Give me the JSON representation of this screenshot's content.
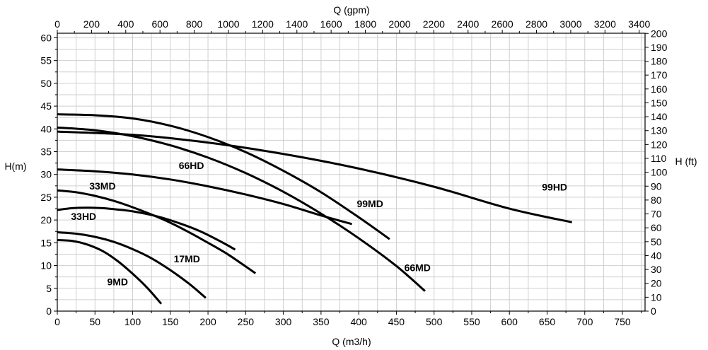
{
  "chart_data": {
    "type": "line",
    "title": "",
    "xlabel": "Q (m3/h)",
    "x2label": "Q (gpm)",
    "ylabel": "H(m)",
    "y2label": "H (ft)",
    "xlim": [
      0,
      780
    ],
    "ylim": [
      0,
      61
    ],
    "x_ticks": [
      0,
      50,
      100,
      150,
      200,
      250,
      300,
      350,
      400,
      450,
      500,
      550,
      600,
      650,
      700,
      750
    ],
    "y_ticks": [
      0,
      5,
      10,
      15,
      20,
      25,
      30,
      35,
      40,
      45,
      50,
      55,
      60
    ],
    "x2_ticks": [
      0,
      200,
      400,
      600,
      800,
      1000,
      1200,
      1400,
      1600,
      1800,
      2000,
      2200,
      2400,
      2600,
      2800,
      3000,
      3200,
      3400
    ],
    "y2_ticks": [
      0,
      10,
      20,
      30,
      40,
      50,
      60,
      70,
      80,
      90,
      100,
      110,
      120,
      130,
      140,
      150,
      160,
      170,
      180,
      190,
      200
    ],
    "grid": true,
    "series": [
      {
        "name": "9MD",
        "label_at": [
          80,
          5.7
        ],
        "x": [
          0,
          20,
          40,
          60,
          80,
          100,
          120,
          138
        ],
        "y": [
          15.6,
          15.4,
          14.6,
          13.2,
          11.0,
          8.2,
          5.0,
          1.6
        ]
      },
      {
        "name": "17MD",
        "label_at": [
          172,
          10.7
        ],
        "x": [
          0,
          25,
          50,
          75,
          100,
          125,
          150,
          175,
          197
        ],
        "y": [
          17.3,
          17.0,
          16.3,
          15.2,
          13.6,
          11.6,
          9.0,
          6.0,
          2.9
        ]
      },
      {
        "name": "33HD",
        "label_at": [
          35,
          20.0
        ],
        "x": [
          0,
          20,
          40,
          60,
          80,
          100,
          130,
          160,
          190,
          220,
          236
        ],
        "y": [
          22.2,
          22.6,
          22.7,
          22.6,
          22.3,
          21.9,
          20.9,
          19.4,
          17.5,
          15.0,
          13.5
        ]
      },
      {
        "name": "33MD",
        "label_at": [
          60,
          26.7
        ],
        "x": [
          0,
          25,
          50,
          75,
          100,
          125,
          150,
          175,
          200,
          225,
          250,
          263
        ],
        "y": [
          26.5,
          26.1,
          25.3,
          24.2,
          22.8,
          21.2,
          19.4,
          17.3,
          15.0,
          12.6,
          9.8,
          8.3
        ]
      },
      {
        "name": "66HD",
        "label_at": [
          178,
          31.2
        ],
        "x": [
          0,
          50,
          100,
          150,
          200,
          250,
          300,
          350,
          391
        ],
        "y": [
          31.1,
          30.7,
          30.0,
          28.9,
          27.4,
          25.6,
          23.5,
          21.0,
          19.1
        ]
      },
      {
        "name": "99HD",
        "label_at": [
          660,
          26.5
        ],
        "x": [
          0,
          100,
          200,
          300,
          400,
          500,
          600,
          683
        ],
        "y": [
          39.4,
          38.7,
          37.0,
          34.5,
          31.3,
          27.3,
          22.5,
          19.5
        ]
      },
      {
        "name": "66MD",
        "label_at": [
          478,
          8.8
        ],
        "x": [
          0,
          50,
          100,
          150,
          200,
          250,
          300,
          350,
          400,
          450,
          488
        ],
        "y": [
          40.3,
          39.7,
          38.4,
          36.4,
          33.7,
          30.3,
          26.2,
          21.4,
          16.0,
          9.9,
          4.4
        ]
      },
      {
        "name": "99MD",
        "label_at": [
          415,
          22.8
        ],
        "x": [
          0,
          50,
          100,
          150,
          200,
          250,
          300,
          350,
          400,
          441
        ],
        "y": [
          43.2,
          43.0,
          42.3,
          40.7,
          38.2,
          34.9,
          30.8,
          26.1,
          20.6,
          15.8
        ]
      }
    ]
  }
}
